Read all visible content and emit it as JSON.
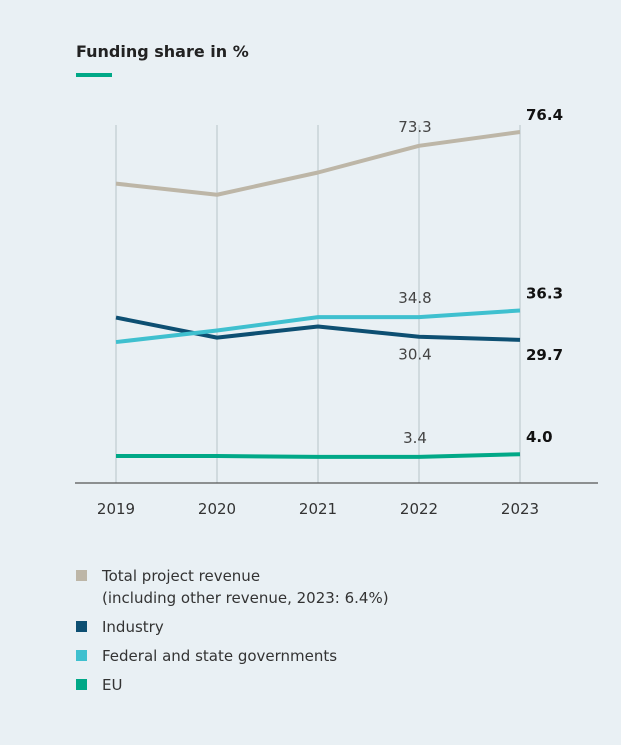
{
  "chart_data": {
    "type": "line",
    "title": "Funding share in %",
    "x": [
      "2019",
      "2020",
      "2021",
      "2022",
      "2023"
    ],
    "ylim": [
      0,
      85
    ],
    "series": [
      {
        "key": "total",
        "name": "Total project revenue",
        "name_sub": "(including other revenue, 2023: 6.4%)",
        "color": "#bdb6a7",
        "values": [
          64.8,
          62.3,
          67.3,
          73.3,
          76.4
        ],
        "labels": [
          {
            "index": 3,
            "text": "73.3",
            "bold": false,
            "position": "above"
          },
          {
            "index": 4,
            "text": "76.4",
            "bold": true,
            "position": "above-right"
          }
        ]
      },
      {
        "key": "industry",
        "name": "Industry",
        "color": "#0d4f72",
        "values": [
          34.7,
          30.2,
          32.7,
          30.4,
          29.7
        ],
        "labels": [
          {
            "index": 3,
            "text": "30.4",
            "bold": false,
            "position": "below"
          },
          {
            "index": 4,
            "text": "29.7",
            "bold": true,
            "position": "below-right"
          }
        ]
      },
      {
        "key": "government",
        "name": "Federal and state governments",
        "color": "#3fc0cf",
        "values": [
          29.2,
          31.8,
          34.8,
          34.8,
          36.3
        ],
        "labels": [
          {
            "index": 3,
            "text": "34.8",
            "bold": false,
            "position": "above"
          },
          {
            "index": 4,
            "text": "36.3",
            "bold": true,
            "position": "above-right"
          }
        ]
      },
      {
        "key": "eu",
        "name": "EU",
        "color": "#00a887",
        "values": [
          3.6,
          3.6,
          3.4,
          3.4,
          4.0
        ],
        "labels": [
          {
            "index": 3,
            "text": "3.4",
            "bold": false,
            "position": "above"
          },
          {
            "index": 4,
            "text": "4.0",
            "bold": true,
            "position": "above-right"
          }
        ]
      }
    ]
  },
  "colors": {
    "background": "#e9f0f4",
    "accent": "#00a887",
    "grid": "#b8c3c9",
    "axis": "#555555"
  }
}
